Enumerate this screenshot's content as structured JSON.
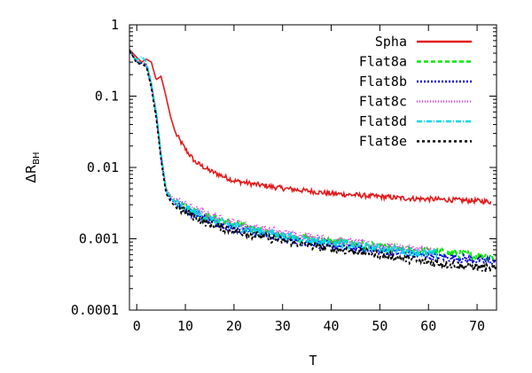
{
  "chart_data": {
    "type": "line",
    "title": "",
    "xlabel": "T",
    "ylabel": {
      "main": "ΔR",
      "sub": "BH"
    },
    "xlim": [
      -1.5,
      74
    ],
    "ylim": [
      0.0001,
      1
    ],
    "yscale": "log",
    "grid": false,
    "legend_position": "top-right",
    "x_ticks": [
      {
        "value": 0,
        "label": "0"
      },
      {
        "value": 10,
        "label": "10"
      },
      {
        "value": 20,
        "label": "20"
      },
      {
        "value": 30,
        "label": "30"
      },
      {
        "value": 40,
        "label": "40"
      },
      {
        "value": 50,
        "label": "50"
      },
      {
        "value": 60,
        "label": "60"
      },
      {
        "value": 70,
        "label": "70"
      }
    ],
    "y_ticks": [
      {
        "value": 1,
        "label": "1"
      },
      {
        "value": 0.1,
        "label": "0.1"
      },
      {
        "value": 0.01,
        "label": "0.01"
      },
      {
        "value": 0.001,
        "label": "0.001"
      },
      {
        "value": 0.0001,
        "label": "0.0001"
      }
    ],
    "series": [
      {
        "name": "Spha",
        "color": "#e41a1c",
        "dash": "",
        "x": [
          -1.5,
          0,
          1,
          2,
          3,
          4,
          5,
          6,
          7,
          8,
          10,
          12,
          15,
          20,
          25,
          30,
          35,
          40,
          45,
          50,
          55,
          60,
          65,
          70,
          73
        ],
        "y": [
          0.45,
          0.35,
          0.3,
          0.33,
          0.3,
          0.17,
          0.19,
          0.1,
          0.05,
          0.03,
          0.018,
          0.012,
          0.009,
          0.0065,
          0.0057,
          0.0051,
          0.0047,
          0.0043,
          0.0041,
          0.0039,
          0.0037,
          0.0036,
          0.0035,
          0.0034,
          0.0033
        ]
      },
      {
        "name": "Flat8a",
        "color": "#00e600",
        "dash": "5,3",
        "x": [
          -1.5,
          0,
          1,
          2,
          3,
          4,
          5,
          6,
          7,
          8,
          10,
          12,
          15,
          20,
          25,
          30,
          35,
          40,
          45,
          50,
          55,
          60,
          65,
          70,
          74
        ],
        "y": [
          0.45,
          0.3,
          0.3,
          0.28,
          0.15,
          0.06,
          0.015,
          0.005,
          0.0038,
          0.0033,
          0.0028,
          0.0024,
          0.002,
          0.0016,
          0.0013,
          0.0011,
          0.001,
          0.00092,
          0.00083,
          0.00076,
          0.0007,
          0.00066,
          0.00062,
          0.00058,
          0.00057
        ]
      },
      {
        "name": "Flat8b",
        "color": "#0000dd",
        "dash": "2,2",
        "x": [
          -1.5,
          0,
          1,
          2,
          3,
          4,
          5,
          6,
          7,
          8,
          10,
          12,
          15,
          20,
          25,
          30,
          35,
          40,
          45,
          50,
          55,
          60,
          65,
          70,
          74
        ],
        "y": [
          0.44,
          0.3,
          0.29,
          0.27,
          0.14,
          0.055,
          0.014,
          0.0048,
          0.0036,
          0.0031,
          0.0026,
          0.0022,
          0.0018,
          0.0014,
          0.0012,
          0.001,
          0.0009,
          0.0008,
          0.00073,
          0.00067,
          0.00062,
          0.00058,
          0.00054,
          0.0005,
          0.00048
        ]
      },
      {
        "name": "Flat8c",
        "color": "#e040e0",
        "dash": "1,2",
        "x": [
          -1.5,
          0,
          1,
          2,
          3,
          4,
          5,
          6,
          7,
          8,
          10,
          12,
          15,
          20,
          25,
          30,
          35,
          40,
          45,
          50,
          55,
          60,
          62
        ],
        "y": [
          0.45,
          0.31,
          0.3,
          0.28,
          0.15,
          0.06,
          0.016,
          0.0052,
          0.004,
          0.0035,
          0.003,
          0.0026,
          0.0021,
          0.0017,
          0.0014,
          0.0012,
          0.0011,
          0.00096,
          0.00088,
          0.0008,
          0.00073,
          0.00068,
          0.00066
        ]
      },
      {
        "name": "Flat8d",
        "color": "#00d8e8",
        "dash": "6,2,1,2",
        "x": [
          -1.5,
          0,
          1,
          2,
          3,
          4,
          5,
          6,
          7,
          8,
          10,
          12,
          15,
          20,
          25,
          30,
          35,
          40,
          45,
          50,
          55,
          60,
          62
        ],
        "y": [
          0.44,
          0.32,
          0.36,
          0.3,
          0.15,
          0.06,
          0.015,
          0.0049,
          0.0037,
          0.0032,
          0.0027,
          0.0023,
          0.0019,
          0.0015,
          0.0013,
          0.0011,
          0.00097,
          0.00088,
          0.0008,
          0.00073,
          0.00067,
          0.00062,
          0.0006
        ]
      },
      {
        "name": "Flat8e",
        "color": "#000000",
        "dash": "3,3",
        "x": [
          -1.5,
          0,
          1,
          2,
          3,
          4,
          5,
          6,
          7,
          8,
          10,
          12,
          15,
          20,
          25,
          30,
          35,
          40,
          45,
          50,
          55,
          60,
          65,
          70,
          74
        ],
        "y": [
          0.44,
          0.29,
          0.28,
          0.26,
          0.13,
          0.05,
          0.013,
          0.0044,
          0.0033,
          0.0028,
          0.0024,
          0.002,
          0.0016,
          0.0013,
          0.0011,
          0.00093,
          0.00082,
          0.00073,
          0.00066,
          0.0006,
          0.00053,
          0.00047,
          0.00043,
          0.0004,
          0.00037
        ]
      }
    ]
  }
}
